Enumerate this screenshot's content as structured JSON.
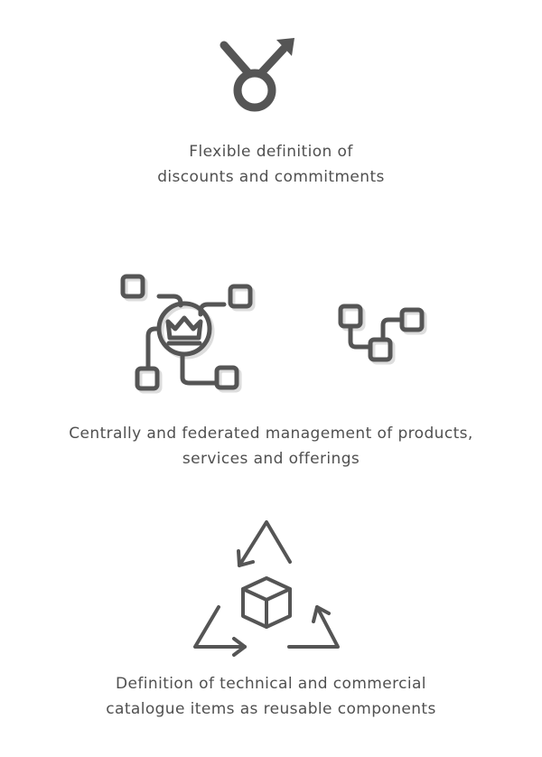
{
  "features": [
    {
      "icon": "gender-symbol-icon",
      "caption_lines": [
        "Flexible definition of",
        "discounts and commitments"
      ]
    },
    {
      "icon": "network-hub-icon",
      "icon_secondary": "node-chain-icon",
      "caption_lines": [
        "Centrally and federated management of products,",
        "services and offerings"
      ]
    },
    {
      "icon": "recycle-cube-icon",
      "caption_lines": [
        "Definition of technical and commercial",
        "catalogue items as reusable components"
      ]
    }
  ],
  "colors": {
    "icon_stroke": "#555555",
    "icon_shadow": "#dddddd",
    "text": "#505050",
    "background": "#ffffff"
  }
}
